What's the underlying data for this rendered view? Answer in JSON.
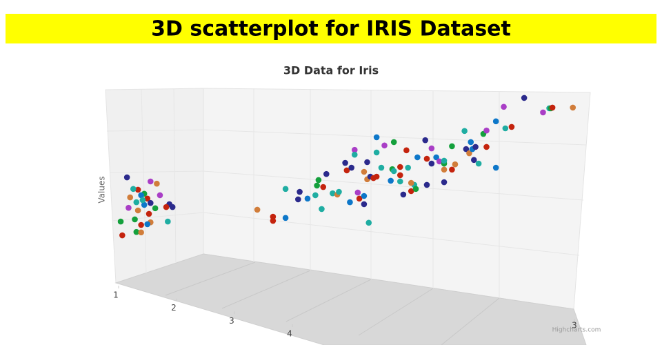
{
  "header": {
    "title": "3D scatterplot for IRIS Dataset"
  },
  "chart_data": {
    "type": "scatter3d",
    "title": "3D Data for Iris",
    "y_label": "Values",
    "credits": "Highcharts.com",
    "xlim": [
      0,
      3
    ],
    "xticks": [
      3
    ],
    "ylim": [
      0,
      8
    ],
    "zlim": [
      1,
      4
    ],
    "zticks": [
      1,
      2,
      3,
      4
    ],
    "palette": [
      "#2b2a8c",
      "#a93ec6",
      "#d17d3a",
      "#c4230d",
      "#1fada2",
      "#14a03c",
      "#0d77c9"
    ],
    "series": [
      {
        "x": [
          0.15,
          0.3,
          0.34,
          0.22,
          0.19,
          0.26,
          0.24,
          0.17,
          0.28,
          0.36,
          0.21,
          0.3,
          0.42,
          0.4,
          0.16,
          0.26,
          0.22,
          0.33,
          0.29,
          0.2,
          0.41,
          0.11,
          0.24,
          0.3,
          0.12,
          0.21,
          0.24,
          0.28,
          0.44,
          0.25,
          0.98,
          1.08,
          1.08,
          1.16,
          1.16,
          1.24,
          1.25,
          1.3,
          1.35,
          1.39,
          1.36,
          1.4,
          1.42,
          1.37,
          1.46,
          1.49,
          1.5,
          1.54,
          1.55,
          1.58,
          1.6,
          1.6,
          1.57,
          1.62,
          1.63,
          1.66,
          1.66,
          1.68,
          1.66,
          1.68,
          1.7,
          1.72,
          1.74,
          1.69,
          1.74,
          1.77,
          1.74,
          1.79,
          1.85,
          1.84,
          1.83,
          1.85,
          1.89,
          1.89,
          1.89,
          1.91,
          1.93,
          1.94,
          1.96,
          1.98,
          1.99,
          1.96,
          2.0,
          2.05,
          2.06,
          2.06,
          2.09,
          2.09,
          2.12,
          2.14,
          2.17,
          2.17,
          2.17,
          2.17,
          2.22,
          2.22,
          2.24,
          2.3,
          2.31,
          2.33,
          2.34,
          2.35,
          2.36,
          2.37,
          2.39,
          2.42,
          2.44,
          2.44,
          2.5,
          2.5,
          2.55,
          2.56,
          2.6,
          2.68,
          2.8,
          2.84,
          2.85,
          2.86,
          2.99
        ],
        "y": [
          4.37,
          4.2,
          4.11,
          3.86,
          3.89,
          3.69,
          3.63,
          3.54,
          3.49,
          3.63,
          3.34,
          3.31,
          3.26,
          3.14,
          3.11,
          3.23,
          3.0,
          3.09,
          2.86,
          2.63,
          2.54,
          2.54,
          2.4,
          2.51,
          1.97,
          2.11,
          2.09,
          2.43,
          3.14,
          3.43,
          3.03,
          2.74,
          2.57,
          2.69,
          3.89,
          3.46,
          3.77,
          3.49,
          3.63,
          3.06,
          4.03,
          3.97,
          4.51,
          4.26,
          3.71,
          3.66,
          3.77,
          4.97,
          4.66,
          4.77,
          5.51,
          5.31,
          3.34,
          3.74,
          3.49,
          3.6,
          3.26,
          5.0,
          4.6,
          4.29,
          4.4,
          4.34,
          4.4,
          2.49,
          6.03,
          4.77,
          5.4,
          5.69,
          5.83,
          4.71,
          4.23,
          4.63,
          4.8,
          4.46,
          4.2,
          3.66,
          5.49,
          4.77,
          3.8,
          4.06,
          3.89,
          4.14,
          5.2,
          5.91,
          4.06,
          5.14,
          5.57,
          4.94,
          5.2,
          5.03,
          4.94,
          4.17,
          4.69,
          5.06,
          5.66,
          4.69,
          4.91,
          6.29,
          5.54,
          5.37,
          5.83,
          5.54,
          5.09,
          5.63,
          4.94,
          6.17,
          6.31,
          5.63,
          6.69,
          4.77,
          7.29,
          6.4,
          6.46,
          7.66,
          7.06,
          7.23,
          7.23,
          7.26,
          7.26
        ],
        "color_index": [
          0,
          1,
          2,
          3,
          4,
          5,
          6,
          2,
          3,
          1,
          4,
          0,
          0,
          3,
          1,
          6,
          2,
          5,
          3,
          5,
          4,
          5,
          3,
          2,
          3,
          5,
          2,
          6,
          0,
          4,
          2,
          3,
          3,
          6,
          4,
          0,
          0,
          6,
          4,
          4,
          5,
          3,
          0,
          5,
          4,
          2,
          4,
          0,
          3,
          0,
          1,
          4,
          6,
          1,
          3,
          6,
          0,
          0,
          2,
          2,
          0,
          3,
          3,
          4,
          6,
          4,
          4,
          1,
          5,
          5,
          6,
          4,
          3,
          3,
          4,
          0,
          3,
          4,
          3,
          4,
          5,
          2,
          6,
          0,
          0,
          3,
          1,
          0,
          6,
          1,
          5,
          0,
          2,
          4,
          5,
          3,
          2,
          4,
          0,
          2,
          6,
          6,
          0,
          0,
          4,
          5,
          1,
          3,
          6,
          6,
          1,
          4,
          3,
          0,
          1,
          4,
          5,
          3,
          2
        ]
      }
    ]
  }
}
